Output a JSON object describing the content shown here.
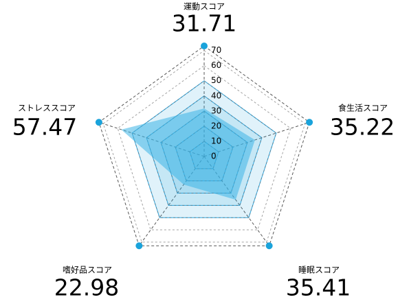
{
  "chart_data": {
    "type": "radar",
    "categories": [
      "運動スコア",
      "食生活スコア",
      "睡眠スコア",
      "嗜好品スコア",
      "ストレススコア"
    ],
    "series": [
      {
        "color": "#3cb4e6",
        "values": [
          31.71,
          35.22,
          35.41,
          22.98,
          57.47
        ]
      }
    ],
    "rlim": [
      0,
      73
    ],
    "rticks": [
      0,
      10,
      20,
      30,
      40,
      50,
      60,
      70
    ],
    "band_rings": [
      10,
      20,
      30,
      40,
      50
    ],
    "band_color": "#2ea7e0",
    "grid": true
  }
}
